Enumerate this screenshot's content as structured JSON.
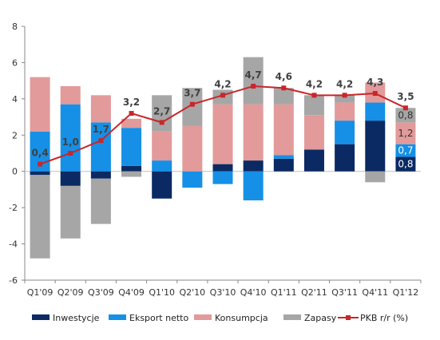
{
  "chart_data": {
    "type": "bar",
    "stacked": true,
    "categories": [
      "Q1'09",
      "Q2'09",
      "Q3'09",
      "Q4'09",
      "Q1'10",
      "Q2'10",
      "Q3'10",
      "Q4'10",
      "Q1'11",
      "Q2'11",
      "Q3'11",
      "Q4'11",
      "Q1'12"
    ],
    "ylim": [
      -6,
      8
    ],
    "yticks": [
      "-6",
      "-4",
      "-2",
      "0",
      "2",
      "4",
      "6",
      "8"
    ],
    "grid": false,
    "legend_position": "bottom",
    "series": [
      {
        "name": "Inwestycje",
        "kind": "bar",
        "color": "#0b2a63",
        "values": [
          -0.2,
          -0.8,
          -0.4,
          0.3,
          -1.5,
          0.0,
          0.4,
          0.6,
          0.7,
          1.2,
          1.5,
          2.8,
          0.8
        ]
      },
      {
        "name": "Eksport netto",
        "kind": "bar",
        "color": "#1590e6",
        "values": [
          2.2,
          3.7,
          2.7,
          2.1,
          0.6,
          -0.9,
          -0.7,
          -1.6,
          0.2,
          0.0,
          1.3,
          1.0,
          0.7
        ]
      },
      {
        "name": "Konsumpcja",
        "kind": "bar",
        "color": "#e29a9a",
        "values": [
          3.0,
          1.0,
          1.5,
          0.5,
          1.6,
          2.5,
          3.3,
          3.1,
          2.8,
          1.9,
          1.0,
          1.1,
          1.2
        ]
      },
      {
        "name": "Zapasy",
        "kind": "bar",
        "color": "#a6a6a6",
        "values": [
          -4.6,
          -2.9,
          -2.5,
          -0.3,
          2.0,
          2.1,
          0.8,
          2.6,
          0.9,
          1.1,
          0.4,
          -0.6,
          0.8
        ]
      },
      {
        "name": "PKB r/r (%)",
        "kind": "line",
        "color": "#c8262a",
        "values": [
          0.4,
          1.0,
          1.7,
          3.2,
          2.7,
          3.7,
          4.2,
          4.7,
          4.6,
          4.2,
          4.2,
          4.3,
          3.5
        ],
        "labels": [
          "0,4",
          "1,0",
          "1,7",
          "3,2",
          "2,7",
          "3,7",
          "4,2",
          "4,7",
          "4,6",
          "4,2",
          "4,2",
          "4,3",
          "3,5"
        ]
      }
    ],
    "segment_labels": {
      "Q1'12": {
        "Inwestycje": "0,8",
        "Eksport netto": "0,7",
        "Konsumpcja": "1,2",
        "Zapasy": "0,8"
      }
    }
  }
}
